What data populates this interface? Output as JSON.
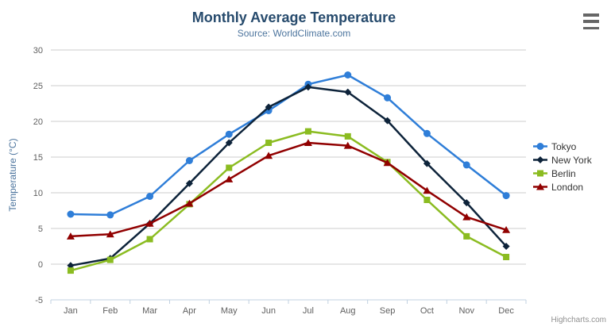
{
  "credits": {
    "label": "Highcharts.com"
  },
  "export_menu": {
    "icon": "hamburger-menu-icon"
  },
  "chart_data": {
    "type": "line",
    "title": "Monthly Average Temperature",
    "subtitle": "Source: WorldClimate.com",
    "xlabel": "",
    "ylabel": "Temperature (°C)",
    "categories": [
      "Jan",
      "Feb",
      "Mar",
      "Apr",
      "May",
      "Jun",
      "Jul",
      "Aug",
      "Sep",
      "Oct",
      "Nov",
      "Dec"
    ],
    "series": [
      {
        "name": "Tokyo",
        "marker": "circle",
        "color": "#2f7ed8",
        "values": [
          7.0,
          6.9,
          9.5,
          14.5,
          18.2,
          21.5,
          25.2,
          26.5,
          23.3,
          18.3,
          13.9,
          9.6
        ]
      },
      {
        "name": "New York",
        "marker": "diamond",
        "color": "#0d233a",
        "values": [
          -0.2,
          0.8,
          5.7,
          11.3,
          17.0,
          22.0,
          24.8,
          24.1,
          20.1,
          14.1,
          8.6,
          2.5
        ]
      },
      {
        "name": "Berlin",
        "marker": "square",
        "color": "#8bbc21",
        "values": [
          -0.9,
          0.6,
          3.5,
          8.4,
          13.5,
          17.0,
          18.6,
          17.9,
          14.3,
          9.0,
          3.9,
          1.0
        ]
      },
      {
        "name": "London",
        "marker": "triangle",
        "color": "#910000",
        "values": [
          3.9,
          4.2,
          5.7,
          8.5,
          11.9,
          15.2,
          17.0,
          16.6,
          14.2,
          10.3,
          6.6,
          4.8
        ]
      }
    ],
    "ylim": [
      -5,
      30
    ],
    "ytick_step": 5,
    "grid": true,
    "legend_position": "right",
    "colors": {
      "title": "#274b6d",
      "subtitle": "#4d759e",
      "gridline": "#cccccc",
      "axis_line": "#c0d0e0",
      "tick_label": "#606060",
      "axis_title": "#4d759e",
      "legend_text": "#333333"
    }
  }
}
